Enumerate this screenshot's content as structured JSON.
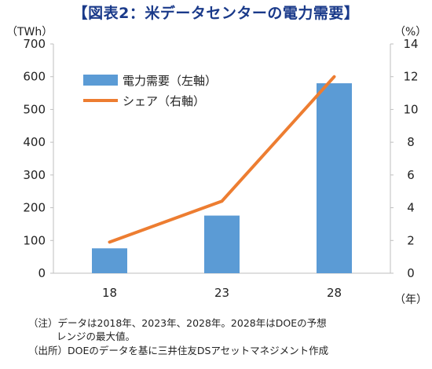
{
  "title": "【図表2：米データセンターの電力需要】",
  "units": {
    "left": "（TWh）",
    "right": "（%）",
    "x": "（年）"
  },
  "notes": {
    "line1": "（注）データは2018年、2023年、2028年。2028年はDOEの予想",
    "line1b": "レンジの最大値。",
    "line2": "（出所）DOEのデータを基に三井住友DSアセットマネジメント作成"
  },
  "colors": {
    "bar": "#5b9bd5",
    "line": "#ed7d31",
    "axis": "#bfbfbf",
    "title": "#1a3a8a"
  },
  "chart_data": {
    "type": "bar",
    "title": "【図表2：米データセンターの電力需要】",
    "categories": [
      "18",
      "23",
      "28"
    ],
    "series": [
      {
        "name": "電力需要（左軸）",
        "type": "bar",
        "axis": "left",
        "values": [
          76,
          176,
          580
        ]
      },
      {
        "name": "シェア（右軸）",
        "type": "line",
        "axis": "right",
        "values": [
          1.9,
          4.4,
          12
        ]
      }
    ],
    "ylim_left": [
      0,
      700
    ],
    "yticks_left": [
      "0",
      "100",
      "200",
      "300",
      "400",
      "500",
      "600",
      "700"
    ],
    "ylim_right": [
      0,
      14
    ],
    "yticks_right": [
      "0",
      "2",
      "4",
      "6",
      "8",
      "10",
      "12",
      "14"
    ],
    "ylabel_left": "（TWh）",
    "ylabel_right": "（%）",
    "xlabel": "（年）",
    "grid": false,
    "legend": "top-left"
  }
}
